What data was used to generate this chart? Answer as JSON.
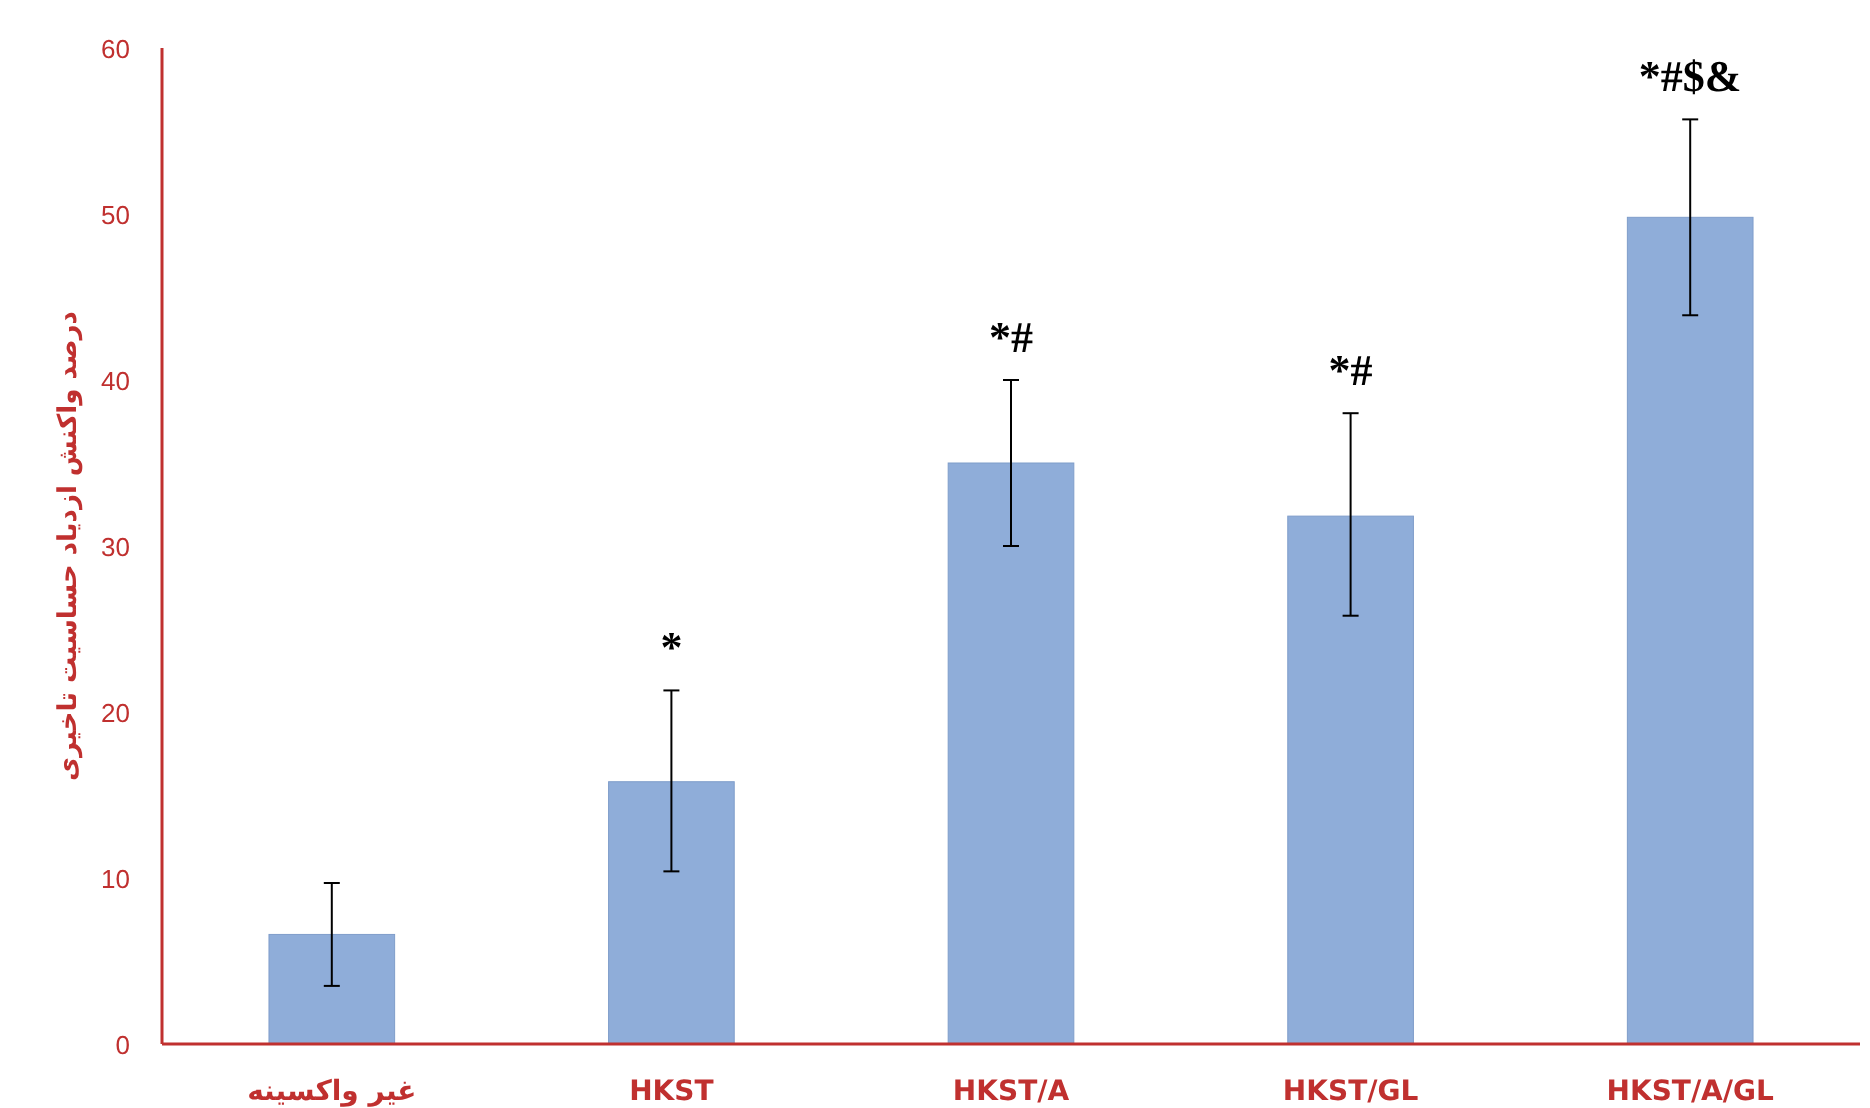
{
  "chart_data": {
    "type": "bar",
    "ylabel": "درصد واکنش ازدیاد حساسیت تاخیری",
    "categories": [
      "غیر واکسینه",
      "HKST",
      "HKST/A",
      "HKST/GL",
      "HKST/A/GL"
    ],
    "values": [
      6.6,
      15.8,
      35.0,
      31.8,
      49.8
    ],
    "errors": [
      [
        3.5,
        9.7
      ],
      [
        10.4,
        21.3
      ],
      [
        30.0,
        40.0
      ],
      [
        25.8,
        38.0
      ],
      [
        43.9,
        55.7
      ]
    ],
    "color": "#8fadd9",
    "ylim": [
      0,
      60
    ],
    "yticks": [
      0,
      10,
      20,
      30,
      40,
      50,
      60
    ],
    "annotations": [
      "*",
      "*#",
      "*#",
      "*#$&"
    ]
  }
}
